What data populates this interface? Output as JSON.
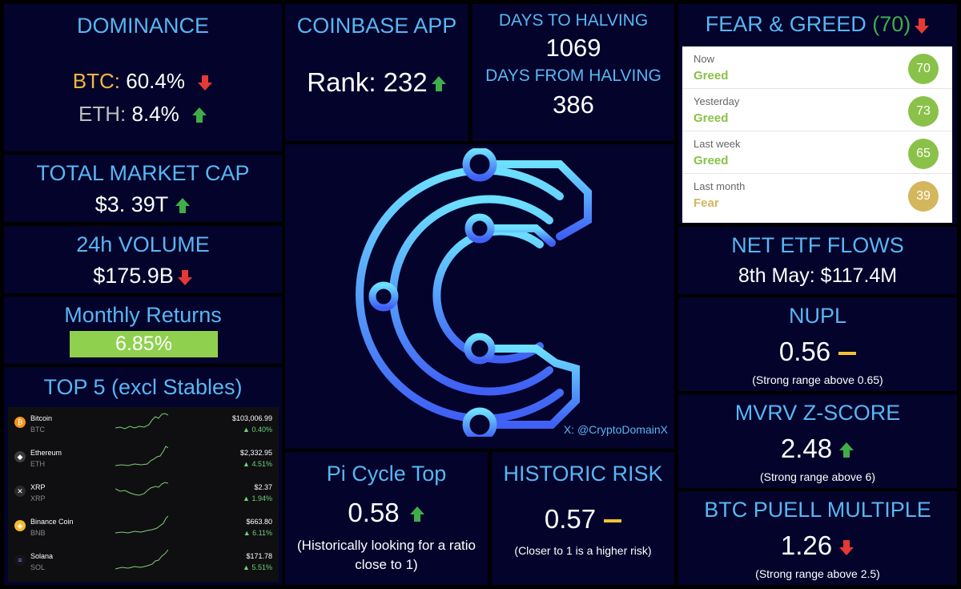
{
  "dominance": {
    "title": "DOMINANCE",
    "btc_label": "BTC:",
    "btc_value": "60.4%",
    "eth_label": "ETH:",
    "eth_value": "8.4%",
    "colors": {
      "btc": "#f5b642",
      "eth": "#bdbdbd"
    }
  },
  "coinbase": {
    "title": "COINBASE APP",
    "rank": "Rank: 232"
  },
  "halving": {
    "to_title": "DAYS TO HALVING",
    "to_value": "1069",
    "from_title": "DAYS FROM HALVING",
    "from_value": "386"
  },
  "fear_greed": {
    "title": "FEAR & GREED",
    "current": "(70)",
    "rows": [
      {
        "label": "Now",
        "state": "Greed",
        "value": "70",
        "color": "#8ac149"
      },
      {
        "label": "Yesterday",
        "state": "Greed",
        "value": "73",
        "color": "#8ac149"
      },
      {
        "label": "Last week",
        "state": "Greed",
        "value": "65",
        "color": "#8ac149"
      },
      {
        "label": "Last month",
        "state": "Fear",
        "value": "39",
        "color": "#d4b65d"
      }
    ]
  },
  "market_cap": {
    "title": "TOTAL MARKET CAP",
    "value": "$3. 39T"
  },
  "volume": {
    "title": "24h VOLUME",
    "value": "$175.9B"
  },
  "monthly": {
    "title": "Monthly Returns",
    "value": "6.85%",
    "bar_color": "#8fd14f"
  },
  "top5": {
    "title": "TOP 5 (excl Stables)",
    "coins": [
      {
        "name": "Bitcoin",
        "symbol": "BTC",
        "price": "$103,006.99",
        "change": "0.40%",
        "icon": "bitcoin-icon",
        "glyph": "₿",
        "color": "#f7931a"
      },
      {
        "name": "Ethereum",
        "symbol": "ETH",
        "price": "$2,332.95",
        "change": "4.51%",
        "icon": "ethereum-icon",
        "glyph": "◆",
        "color": "#3c3c3d"
      },
      {
        "name": "XRP",
        "symbol": "XRP",
        "price": "$2.37",
        "change": "1.94%",
        "icon": "xrp-icon",
        "glyph": "✕",
        "color": "#2a2a2a"
      },
      {
        "name": "Binance Coin",
        "symbol": "BNB",
        "price": "$663.80",
        "change": "6.11%",
        "icon": "bnb-icon",
        "glyph": "◈",
        "color": "#f3ba2f"
      },
      {
        "name": "Solana",
        "symbol": "SOL",
        "price": "$171.78",
        "change": "5.51%",
        "icon": "solana-icon",
        "glyph": "≡",
        "color": "#14151a"
      }
    ]
  },
  "logo": {
    "handle": "X: @CryptoDomainX",
    "icon": "cryptodomain-logo"
  },
  "pi_cycle": {
    "title": "Pi Cycle Top",
    "value": "0.58",
    "note": "(Historically looking for a ratio close to 1)"
  },
  "historic_risk": {
    "title": "HISTORIC RISK",
    "value": "0.57",
    "note": "(Closer to 1 is a higher risk)"
  },
  "etf": {
    "title": "NET ETF FLOWS",
    "value": "8th May: $117.4M"
  },
  "nupl": {
    "title": "NUPL",
    "value": "0.56",
    "note": "(Strong range above 0.65)"
  },
  "mvrv": {
    "title": "MVRV Z-SCORE",
    "value": "2.48",
    "note": "(Strong range above 6)"
  },
  "puell": {
    "title": "BTC PUELL MULTIPLE",
    "value": "1.26",
    "note": "(Strong range above 2.5)"
  }
}
